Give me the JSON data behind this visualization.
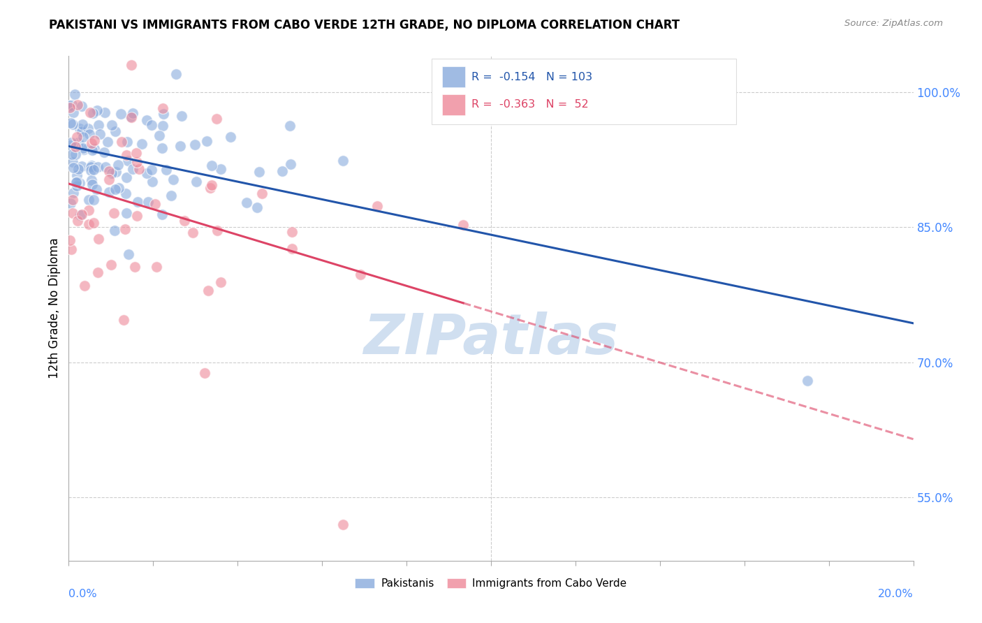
{
  "title": "PAKISTANI VS IMMIGRANTS FROM CABO VERDE 12TH GRADE, NO DIPLOMA CORRELATION CHART",
  "source": "Source: ZipAtlas.com",
  "ylabel": "12th Grade, No Diploma",
  "right_yticks": [
    55.0,
    70.0,
    85.0,
    100.0
  ],
  "blue_R": -0.154,
  "blue_N": 103,
  "pink_R": -0.363,
  "pink_N": 52,
  "blue_color": "#88aadd",
  "pink_color": "#ee8899",
  "blue_line_color": "#2255aa",
  "pink_line_color": "#dd4466",
  "watermark_color": "#d0dff0",
  "legend_label_blue": "Pakistanis",
  "legend_label_pink": "Immigrants from Cabo Verde",
  "xmin": 0.0,
  "xmax": 20.0,
  "ymin": 48.0,
  "ymax": 104.0,
  "grid_color": "#cccccc",
  "axis_color": "#aaaaaa",
  "right_label_color": "#4488ff",
  "xlabel_color": "#4488ff"
}
